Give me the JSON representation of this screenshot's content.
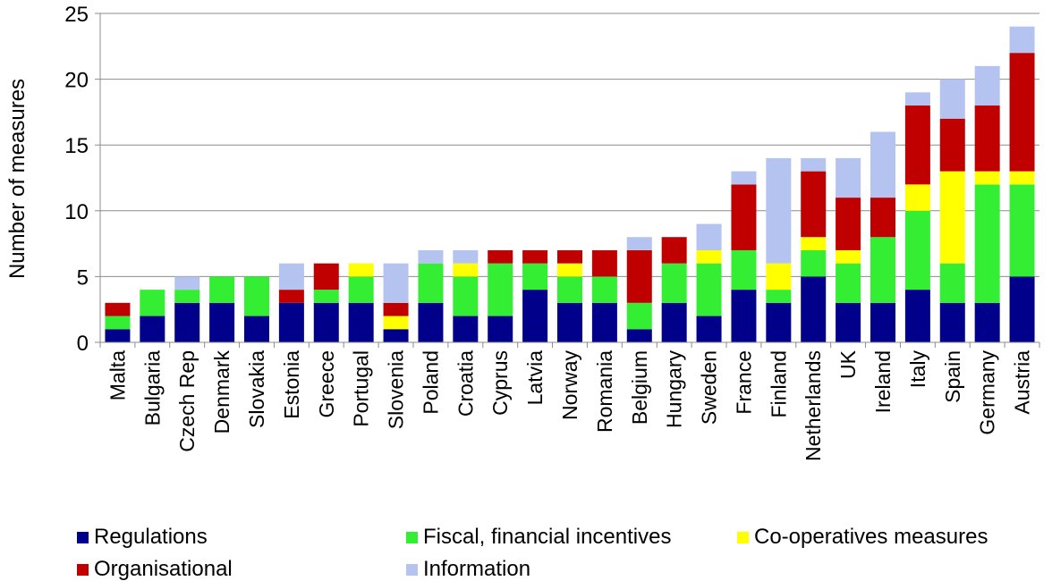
{
  "chart_data": {
    "type": "bar",
    "stacked": true,
    "ylabel": "Number of measures",
    "xlabel": "",
    "ylim": [
      0,
      25
    ],
    "yticks": [
      0,
      5,
      10,
      15,
      20,
      25
    ],
    "grid": true,
    "legend_position": "bottom",
    "categories": [
      "Malta",
      "Bulgaria",
      "Czech Rep",
      "Denmark",
      "Slovakia",
      "Estonia",
      "Greece",
      "Portugal",
      "Slovenia",
      "Poland",
      "Croatia",
      "Cyprus",
      "Latvia",
      "Norway",
      "Romania",
      "Belgium",
      "Hungary",
      "Sweden",
      "France",
      "Finland",
      "Netherlands",
      "UK",
      "Ireland",
      "Italy",
      "Spain",
      "Germany",
      "Austria"
    ],
    "series": [
      {
        "name": "Regulations",
        "color": "#00008B",
        "values": [
          1,
          2,
          3,
          3,
          2,
          3,
          3,
          3,
          1,
          3,
          2,
          2,
          4,
          3,
          3,
          1,
          3,
          2,
          4,
          3,
          5,
          3,
          3,
          4,
          3,
          3,
          5
        ]
      },
      {
        "name": "Fiscal, financial incentives",
        "color": "#33EE33",
        "values": [
          1,
          2,
          1,
          2,
          3,
          0,
          1,
          2,
          0,
          3,
          3,
          4,
          2,
          2,
          2,
          2,
          3,
          4,
          3,
          1,
          2,
          3,
          5,
          6,
          3,
          9,
          7
        ]
      },
      {
        "name": "Co-operatives measures",
        "color": "#FFFF00",
        "values": [
          0,
          0,
          0,
          0,
          0,
          0,
          0,
          1,
          1,
          0,
          1,
          0,
          0,
          1,
          0,
          0,
          0,
          1,
          0,
          2,
          1,
          1,
          0,
          2,
          7,
          1,
          1
        ]
      },
      {
        "name": "Organisational",
        "color": "#C00000",
        "values": [
          1,
          0,
          0,
          0,
          0,
          1,
          2,
          0,
          1,
          0,
          0,
          1,
          1,
          1,
          2,
          4,
          2,
          0,
          5,
          0,
          5,
          4,
          3,
          6,
          4,
          5,
          9
        ]
      },
      {
        "name": "Information",
        "color": "#B4C3F0",
        "values": [
          0,
          0,
          1,
          0,
          0,
          2,
          0,
          0,
          3,
          1,
          1,
          0,
          0,
          0,
          0,
          1,
          0,
          2,
          1,
          8,
          1,
          3,
          5,
          1,
          3,
          3,
          2
        ]
      }
    ]
  }
}
